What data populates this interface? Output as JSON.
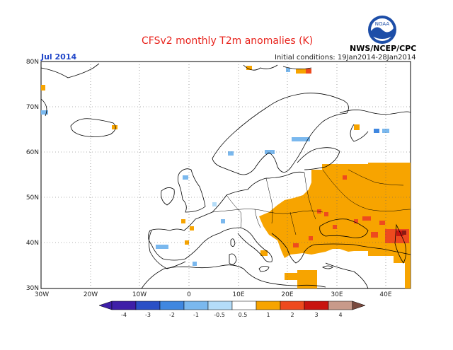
{
  "title": "CFSv2 monthly T2m anomalies (K)",
  "month": "Jul 2014",
  "initial_conditions": "Initial conditions: 19Jan2014-28Jan2014",
  "agency": "NWS/NCEP/CPC",
  "logo_text": "NOAA",
  "map": {
    "lon_range": [
      -30,
      45
    ],
    "lat_range": [
      30,
      80
    ],
    "lat_labels": [
      "30N",
      "40N",
      "50N",
      "60N",
      "70N",
      "80N"
    ],
    "lon_labels": [
      "30W",
      "20W",
      "10W",
      "0",
      "10E",
      "20E",
      "30E",
      "40E"
    ]
  },
  "legend": {
    "tick_labels": [
      "-4",
      "-3",
      "-2",
      "-1",
      "-0.5",
      "0.5",
      "1",
      "2",
      "3",
      "4"
    ],
    "colors": [
      "#3e1fa8",
      "#2a50c6",
      "#3f87e0",
      "#7ab8ee",
      "#b4dcf8",
      "#ffffff",
      "#f7a400",
      "#ee4a1e",
      "#c8140f",
      "#8c1a12",
      "#c89a8a",
      "#7a4a3e"
    ]
  },
  "anomaly_regions": [
    {
      "level": 0.5,
      "desc": "Eastern Europe / Black Sea / Russia warm block",
      "lon": [
        22,
        45
      ],
      "lat": [
        35,
        58
      ]
    },
    {
      "level": 1,
      "desc": "Caucasus warm core",
      "lon": [
        38,
        45
      ],
      "lat": [
        38,
        43
      ]
    }
  ]
}
